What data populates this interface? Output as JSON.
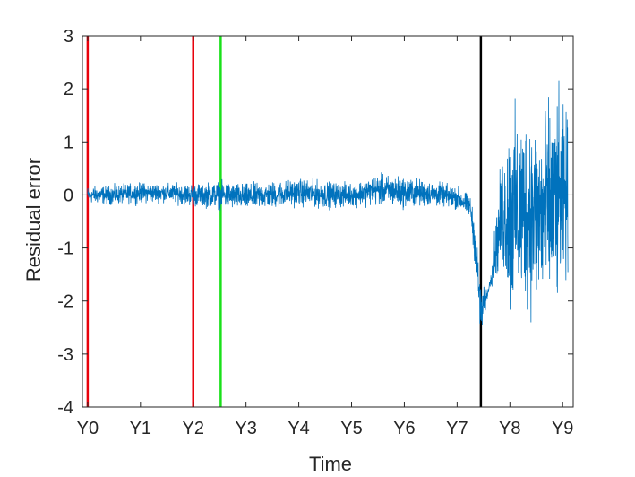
{
  "chart_data": {
    "type": "line",
    "title": "",
    "xlabel": "Time",
    "ylabel": "Residual error",
    "xlim": [
      -0.1,
      9.2
    ],
    "ylim": [
      -4,
      3
    ],
    "grid": false,
    "x_ticks": [
      {
        "value": 0,
        "label": "Y0"
      },
      {
        "value": 1,
        "label": "Y1"
      },
      {
        "value": 2,
        "label": "Y2"
      },
      {
        "value": 3,
        "label": "Y3"
      },
      {
        "value": 4,
        "label": "Y4"
      },
      {
        "value": 5,
        "label": "Y5"
      },
      {
        "value": 6,
        "label": "Y6"
      },
      {
        "value": 7,
        "label": "Y7"
      },
      {
        "value": 8,
        "label": "Y8"
      },
      {
        "value": 9,
        "label": "Y9"
      }
    ],
    "y_ticks": [
      {
        "value": 3,
        "label": "3"
      },
      {
        "value": 2,
        "label": "2"
      },
      {
        "value": 1,
        "label": "1"
      },
      {
        "value": 0,
        "label": "0"
      },
      {
        "value": -1,
        "label": "-1"
      },
      {
        "value": -2,
        "label": "-2"
      },
      {
        "value": -3,
        "label": "-3"
      },
      {
        "value": -4,
        "label": "-4"
      }
    ],
    "vertical_lines": [
      {
        "x": 0.0,
        "color": "#e8000b"
      },
      {
        "x": 2.0,
        "color": "#e8000b"
      },
      {
        "x": 2.52,
        "color": "#1ae01a"
      },
      {
        "x": 7.45,
        "color": "#000000"
      }
    ],
    "series": [
      {
        "color": "#0072bd",
        "envelope": [
          {
            "x": 0.0,
            "y_min": -0.22,
            "y_max": 0.22
          },
          {
            "x": 0.5,
            "y_min": -0.25,
            "y_max": 0.25
          },
          {
            "x": 1.0,
            "y_min": -0.22,
            "y_max": 0.3
          },
          {
            "x": 1.5,
            "y_min": -0.2,
            "y_max": 0.28
          },
          {
            "x": 2.0,
            "y_min": -0.3,
            "y_max": 0.3
          },
          {
            "x": 2.5,
            "y_min": -0.35,
            "y_max": 0.35
          },
          {
            "x": 3.0,
            "y_min": -0.38,
            "y_max": 0.3
          },
          {
            "x": 3.5,
            "y_min": -0.35,
            "y_max": 0.35
          },
          {
            "x": 4.0,
            "y_min": -0.3,
            "y_max": 0.4
          },
          {
            "x": 4.5,
            "y_min": -0.35,
            "y_max": 0.35
          },
          {
            "x": 5.0,
            "y_min": -0.3,
            "y_max": 0.3
          },
          {
            "x": 5.5,
            "y_min": -0.3,
            "y_max": 0.5
          },
          {
            "x": 6.0,
            "y_min": -0.35,
            "y_max": 0.45
          },
          {
            "x": 6.5,
            "y_min": -0.3,
            "y_max": 0.35
          },
          {
            "x": 7.0,
            "y_min": -0.35,
            "y_max": 0.25
          },
          {
            "x": 7.25,
            "y_min": -0.5,
            "y_max": 0.05
          },
          {
            "x": 7.35,
            "y_min": -1.6,
            "y_max": -0.4
          },
          {
            "x": 7.45,
            "y_min": -3.0,
            "y_max": -1.5
          },
          {
            "x": 7.6,
            "y_min": -1.8,
            "y_max": -1.75
          },
          {
            "x": 7.85,
            "y_min": -1.8,
            "y_max": 1.1
          },
          {
            "x": 8.0,
            "y_min": -3.0,
            "y_max": 2.2
          },
          {
            "x": 8.3,
            "y_min": -2.8,
            "y_max": 2.3
          },
          {
            "x": 8.6,
            "y_min": -3.0,
            "y_max": 2.2
          },
          {
            "x": 8.9,
            "y_min": -2.9,
            "y_max": 2.6
          },
          {
            "x": 9.1,
            "y_min": -2.0,
            "y_max": 2.0
          }
        ]
      }
    ]
  }
}
